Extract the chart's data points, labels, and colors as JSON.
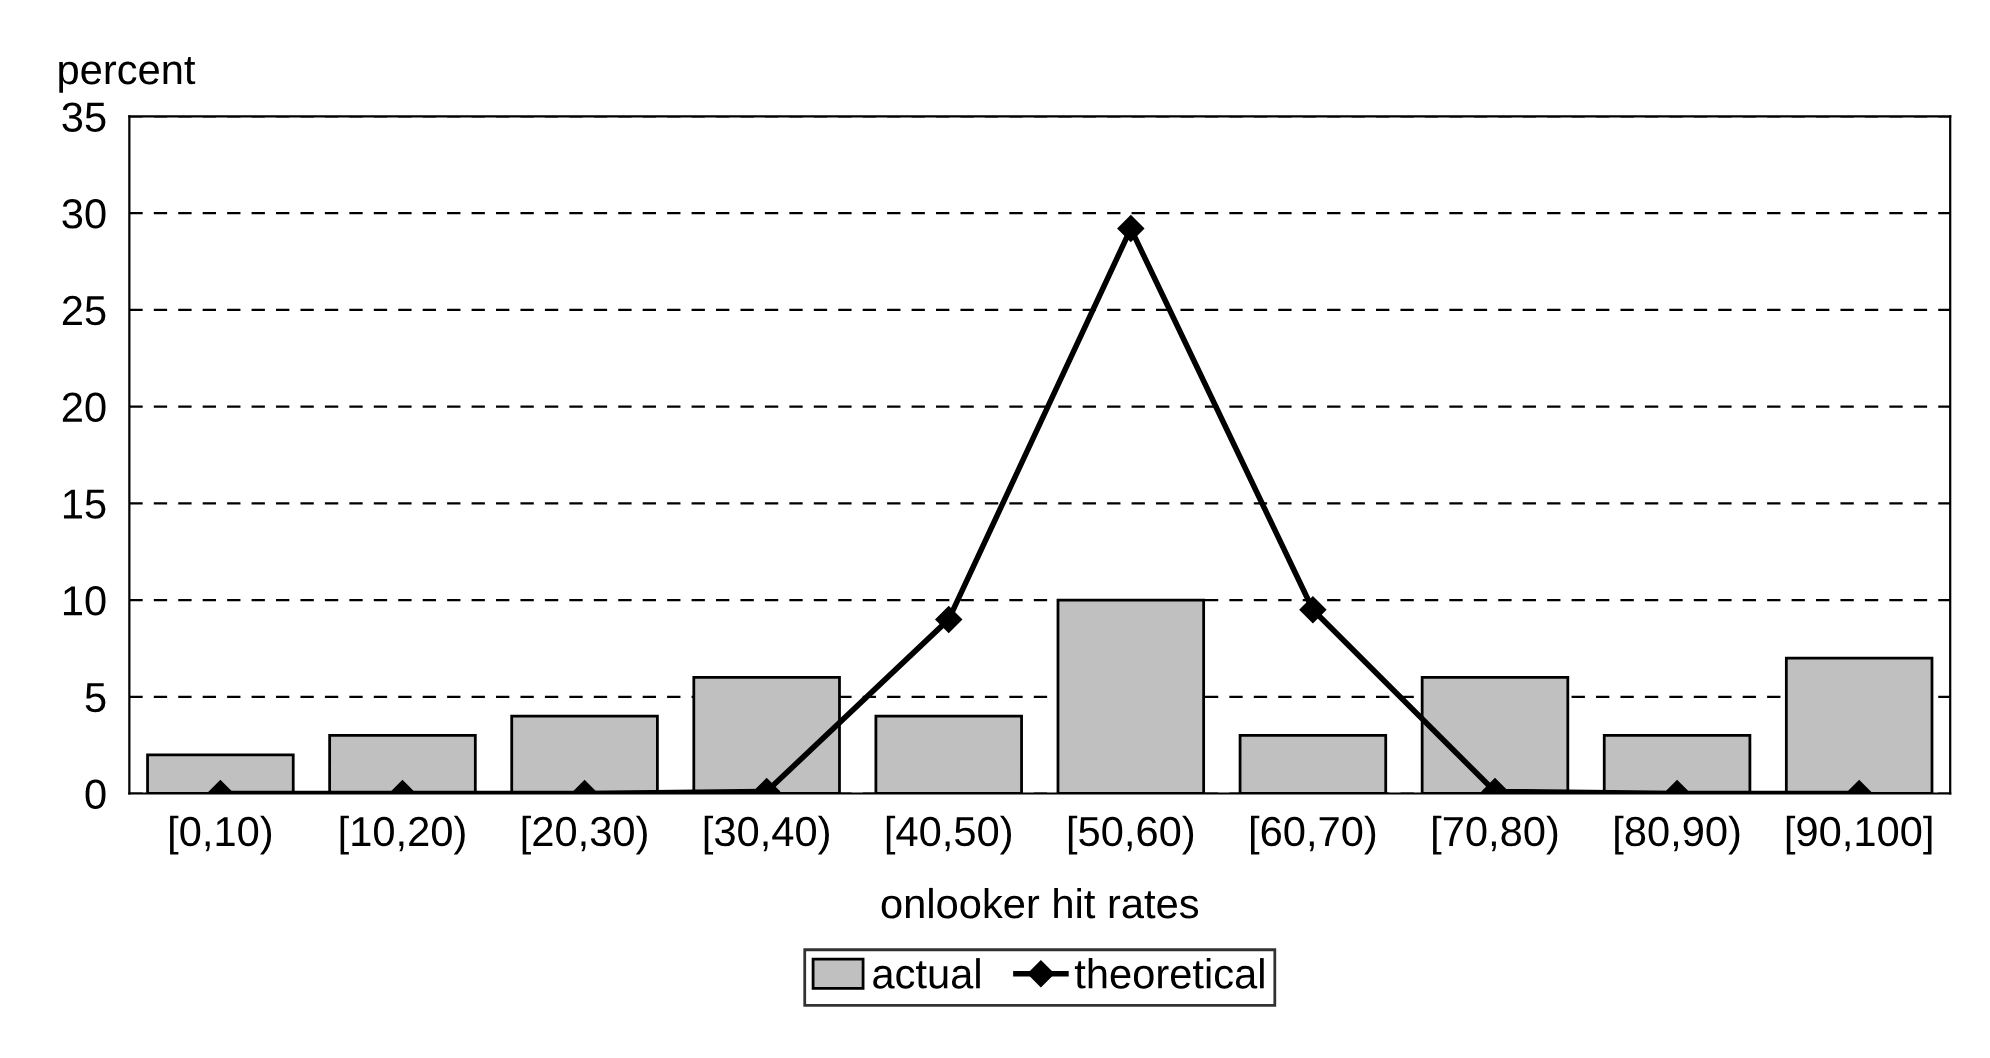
{
  "chart_data": {
    "type": "bar",
    "ylabel": "percent",
    "xlabel": "onlooker hit rates",
    "categories": [
      "[0,10)",
      "[10,20)",
      "[20,30)",
      "[30,40)",
      "[40,50)",
      "[50,60)",
      "[60,70)",
      "[70,80)",
      "[80,90)",
      "[90,100]"
    ],
    "series": [
      {
        "name": "actual",
        "color": "#c0c0c0",
        "values": [
          2,
          3,
          4,
          6,
          4,
          10,
          3,
          6,
          3,
          7
        ]
      },
      {
        "name": "theoretical",
        "type": "line",
        "color": "#000000",
        "marker": "diamond",
        "values": [
          0,
          0,
          0,
          0.1,
          9,
          29.2,
          9.5,
          0.1,
          0,
          0
        ]
      }
    ],
    "ylim": [
      0,
      35
    ],
    "yticks": [
      0,
      5,
      10,
      15,
      20,
      25,
      30,
      35
    ],
    "grid": "y",
    "legend": "bottom"
  }
}
